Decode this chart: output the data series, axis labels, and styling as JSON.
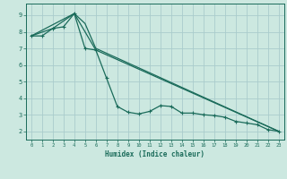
{
  "xlabel": "Humidex (Indice chaleur)",
  "bg_color": "#cce8e0",
  "grid_color": "#aacccc",
  "line_color": "#1a6b5a",
  "xlim": [
    -0.5,
    23.5
  ],
  "ylim": [
    1.5,
    9.7
  ],
  "xticks": [
    0,
    1,
    2,
    3,
    4,
    5,
    6,
    7,
    8,
    9,
    10,
    11,
    12,
    13,
    14,
    15,
    16,
    17,
    18,
    19,
    20,
    21,
    22,
    23
  ],
  "yticks": [
    2,
    3,
    4,
    5,
    6,
    7,
    8,
    9
  ],
  "line1_x": [
    0,
    1,
    2,
    3,
    4,
    5,
    6,
    7,
    8,
    9,
    10,
    11,
    12,
    13,
    14,
    15,
    16,
    17,
    18,
    19,
    20,
    21,
    22,
    23
  ],
  "line1_y": [
    7.75,
    7.75,
    8.2,
    8.3,
    9.1,
    7.0,
    6.9,
    5.2,
    3.5,
    3.15,
    3.05,
    3.2,
    3.55,
    3.5,
    3.1,
    3.1,
    3.0,
    2.95,
    2.85,
    2.6,
    2.5,
    2.4,
    2.1,
    2.0
  ],
  "line2_x": [
    0,
    2,
    4,
    6,
    23
  ],
  "line2_y": [
    7.75,
    8.2,
    9.1,
    6.9,
    2.0
  ],
  "line3_x": [
    0,
    4,
    5,
    6,
    23
  ],
  "line3_y": [
    7.75,
    9.1,
    8.5,
    7.0,
    2.0
  ]
}
